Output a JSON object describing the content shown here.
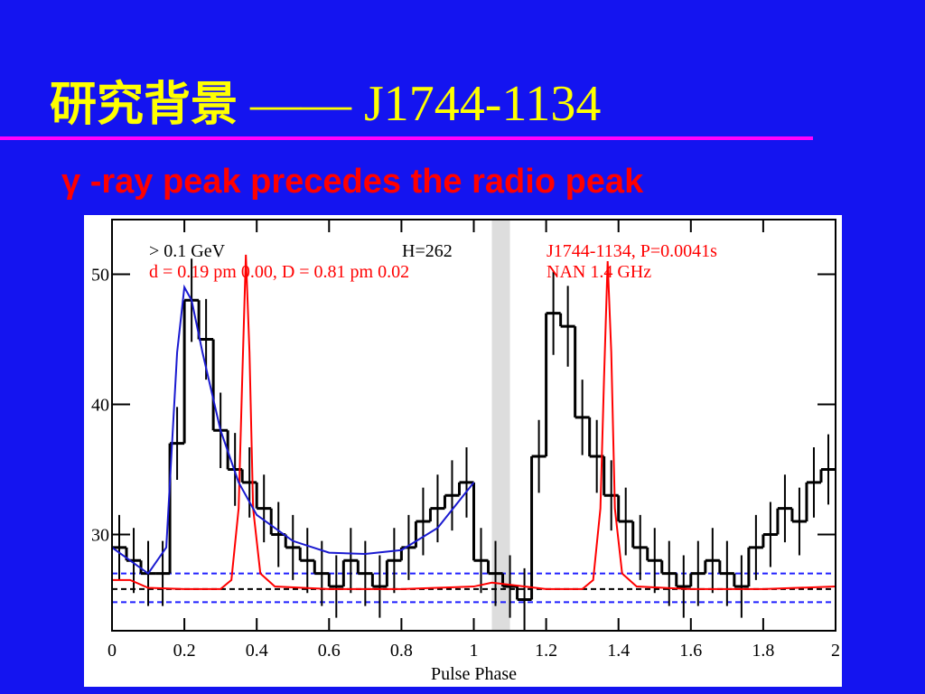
{
  "slide": {
    "title_cjk": "研究背景",
    "title_rest": "—— J1744-1134",
    "subtitle": "γ -ray peak precedes the radio peak"
  },
  "chart_data": {
    "type": "histogram",
    "xlabel": "Pulse Phase",
    "xlim": [
      0,
      2
    ],
    "ylim": [
      22.6,
      54.2
    ],
    "xticks": [
      0,
      0.2,
      0.4,
      0.6,
      0.8,
      1,
      1.2,
      1.4,
      1.6,
      1.8,
      2
    ],
    "yticks": [
      30,
      40,
      50
    ],
    "color": "#000000",
    "bins": [
      0,
      0.04,
      0.08,
      0.12,
      0.16,
      0.2,
      0.24,
      0.28,
      0.32,
      0.36,
      0.4,
      0.44,
      0.48,
      0.52,
      0.56,
      0.6,
      0.64,
      0.68,
      0.72,
      0.76,
      0.8,
      0.84,
      0.88,
      0.92,
      0.96,
      1,
      1.04,
      1.08,
      1.12,
      1.16,
      1.2,
      1.24,
      1.28,
      1.32,
      1.36,
      1.4,
      1.44,
      1.48,
      1.52,
      1.56,
      1.6,
      1.64,
      1.68,
      1.72,
      1.76,
      1.8,
      1.84,
      1.88,
      1.92,
      1.96,
      2
    ],
    "values": [
      29,
      28,
      27,
      27,
      37,
      48,
      45,
      38,
      35,
      34,
      32,
      30,
      29,
      28,
      27,
      26,
      28,
      27,
      26,
      28,
      29,
      31,
      32,
      33,
      34,
      28,
      27,
      26,
      25,
      36,
      47,
      46,
      39,
      36,
      33,
      31,
      29,
      28,
      27,
      26,
      27,
      28,
      27,
      26,
      29,
      30,
      32,
      31,
      34,
      35
    ],
    "errors": [
      2.5,
      2.5,
      2.5,
      2.5,
      2.8,
      3.2,
      3.1,
      2.9,
      2.8,
      2.7,
      2.6,
      2.5,
      2.5,
      2.5,
      2.5,
      2.4,
      2.5,
      2.5,
      2.4,
      2.5,
      2.5,
      2.6,
      2.6,
      2.7,
      2.7,
      2.5,
      2.5,
      2.4,
      2.4,
      2.8,
      3.2,
      3.1,
      2.9,
      2.8,
      2.7,
      2.6,
      2.5,
      2.5,
      2.5,
      2.4,
      2.5,
      2.5,
      2.5,
      2.4,
      2.5,
      2.5,
      2.6,
      2.6,
      2.7,
      2.7
    ],
    "lines": [
      {
        "color": "#ff0000",
        "x": [
          0,
          0.05,
          0.1,
          0.2,
          0.3,
          0.33,
          0.35,
          0.36,
          0.37,
          0.38,
          0.39,
          0.41,
          0.45,
          0.6,
          0.8,
          1,
          1.05,
          1.2,
          1.3,
          1.33,
          1.35,
          1.36,
          1.37,
          1.38,
          1.39,
          1.41,
          1.45,
          1.6,
          1.8,
          2
        ],
        "values": [
          26.5,
          26.5,
          25.9,
          25.8,
          25.8,
          26.5,
          32,
          42,
          51.5,
          44,
          32,
          27,
          26,
          25.8,
          25.8,
          26,
          26.3,
          25.8,
          25.8,
          26.5,
          32,
          42,
          51,
          44,
          32,
          27,
          26,
          25.8,
          25.8,
          26
        ]
      },
      {
        "color": "#1a1ad0",
        "x": [
          0,
          0.1,
          0.15,
          0.18,
          0.2,
          0.22,
          0.25,
          0.3,
          0.35,
          0.4,
          0.5,
          0.6,
          0.7,
          0.8,
          0.9,
          1
        ],
        "values": [
          29,
          27,
          29,
          44,
          49,
          48,
          44,
          38,
          34,
          31.5,
          29.5,
          28.6,
          28.5,
          28.8,
          30.5,
          34
        ]
      }
    ],
    "hlines": [
      {
        "value": 27,
        "color": "#2020ff"
      },
      {
        "value": 25.8,
        "color": "#000000"
      },
      {
        "value": 24.8,
        "color": "#2020ff"
      }
    ],
    "bands": [
      {
        "x": [
          1.05,
          1.1
        ],
        "color": "#dddddd"
      }
    ],
    "annotations": [
      {
        "text": "> 0.1 GeV",
        "color": "#000000"
      },
      {
        "text": "H=262",
        "color": "#000000"
      },
      {
        "text": "d = 0.19 pm 0.00,  D = 0.81 pm 0.02",
        "color": "#ff0000"
      },
      {
        "text": "J1744-1134, P=0.0041s",
        "color": "#ff0000"
      },
      {
        "text": "NAN 1.4 GHz",
        "color": "#ff0000"
      }
    ]
  }
}
